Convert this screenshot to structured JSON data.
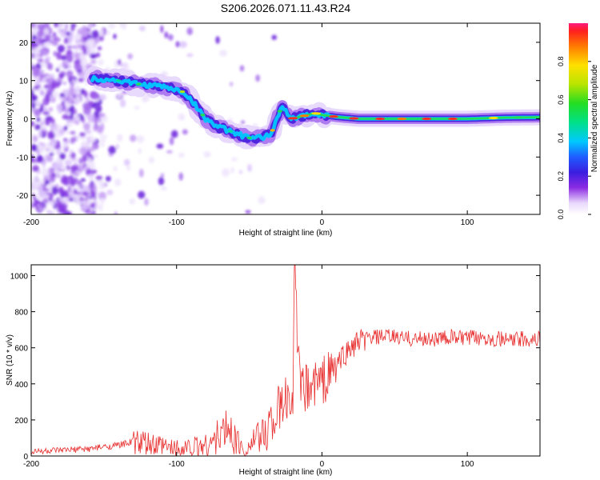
{
  "title": "S206.2026.071.11.43.R24",
  "chart_data": [
    {
      "type": "heatmap",
      "title": "S206.2026.071.11.43.R24",
      "xlabel": "Height of straight line (km)",
      "ylabel": "Frequency (Hz)",
      "xlim": [
        -200,
        150
      ],
      "ylim": [
        -25,
        25
      ],
      "xticks": [
        -200,
        -100,
        0,
        100
      ],
      "yticks": [
        -20,
        -10,
        0,
        10,
        20
      ],
      "ridge": {
        "x": [
          -155,
          -140,
          -125,
          -110,
          -95,
          -88,
          -80,
          -72,
          -65,
          -58,
          -50,
          -42,
          -35,
          -30,
          -28,
          -25,
          -22,
          -15,
          -5,
          0,
          10,
          25,
          50,
          75,
          100,
          125,
          150
        ],
        "y": [
          10.5,
          10,
          9,
          8.5,
          7,
          4,
          0,
          -2,
          -3,
          -4,
          -5,
          -5,
          -4,
          1,
          3,
          2,
          0,
          0.5,
          1.5,
          1,
          0.5,
          0,
          0,
          0,
          0,
          0.3,
          0.4
        ]
      },
      "colorbar": {
        "label": "Normalized spectral amplitude",
        "range": [
          0,
          1
        ],
        "ticks": [
          "0.0",
          "0.2",
          "0.4",
          "0.6",
          "0.8"
        ]
      }
    },
    {
      "type": "line",
      "xlabel": "Height of straight line (km)",
      "ylabel": "SNR (10 * v/v)",
      "xlim": [
        -200,
        150
      ],
      "ylim": [
        0,
        1060
      ],
      "xticks": [
        -200,
        -100,
        0,
        100
      ],
      "yticks": [
        0,
        200,
        400,
        600,
        800,
        1000
      ],
      "color": "#e83030",
      "series": [
        {
          "name": "SNR",
          "x": [
            -200,
            -180,
            -160,
            -140,
            -130,
            -120,
            -110,
            -100,
            -90,
            -80,
            -75,
            -70,
            -65,
            -60,
            -55,
            -50,
            -45,
            -40,
            -35,
            -30,
            -25,
            -20,
            -19,
            -15,
            -10,
            -5,
            0,
            5,
            10,
            15,
            20,
            25,
            30,
            40,
            50,
            60,
            70,
            80,
            90,
            100,
            110,
            120,
            130,
            140,
            150
          ],
          "values": [
            25,
            30,
            40,
            60,
            80,
            60,
            50,
            40,
            45,
            60,
            80,
            120,
            150,
            100,
            50,
            60,
            90,
            120,
            200,
            250,
            300,
            350,
            1050,
            350,
            380,
            400,
            420,
            450,
            500,
            560,
            600,
            630,
            650,
            660,
            660,
            650,
            650,
            650,
            660,
            650,
            660,
            650,
            640,
            650,
            650
          ],
          "peak": {
            "x": -19,
            "y": 1050
          }
        }
      ]
    }
  ]
}
